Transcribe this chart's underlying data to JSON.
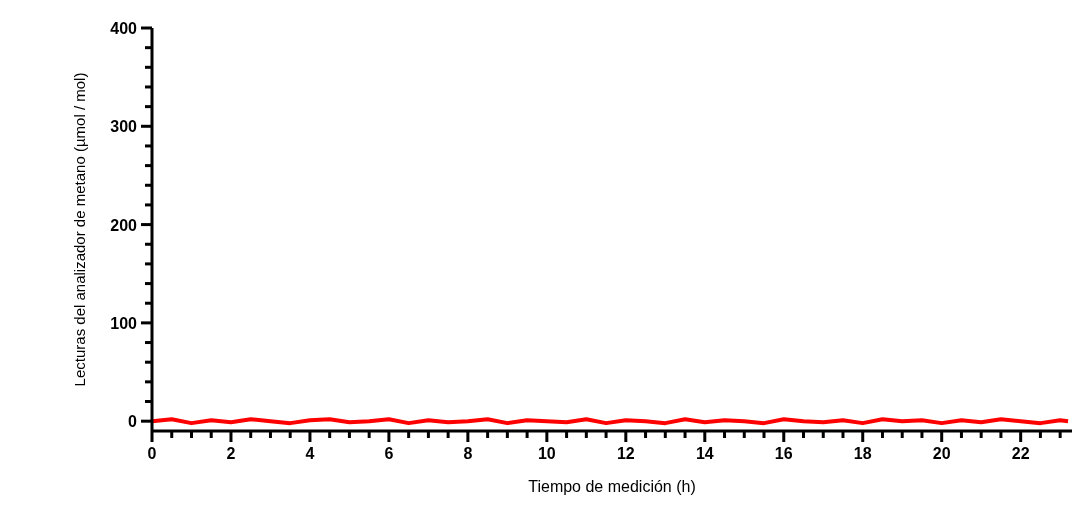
{
  "chart_data": {
    "type": "line",
    "xlabel": "Tiempo de medición (h)",
    "ylabel": "Lecturas del analizador de metano (µmol / mol)",
    "x": [
      0,
      0.5,
      1,
      1.5,
      2,
      2.5,
      3,
      3.5,
      4,
      4.5,
      5,
      5.5,
      6,
      6.5,
      7,
      7.5,
      8,
      8.5,
      9,
      9.5,
      10,
      10.5,
      11,
      11.5,
      12,
      12.5,
      13,
      13.5,
      14,
      14.5,
      15,
      15.5,
      16,
      16.5,
      17,
      17.5,
      18,
      18.5,
      19,
      19.5,
      20,
      20.5,
      21,
      21.5,
      22,
      22.5,
      23,
      23.2
    ],
    "series": [
      {
        "color": "#ff0000",
        "values": [
          0,
          2,
          -2,
          1,
          -1,
          2,
          0,
          -2,
          1,
          2,
          -1,
          0,
          2,
          -2,
          1,
          -1,
          0,
          2,
          -2,
          1,
          0,
          -1,
          2,
          -2,
          1,
          0,
          -2,
          2,
          -1,
          1,
          0,
          -2,
          2,
          0,
          -1,
          1,
          -2,
          2,
          0,
          1,
          -2,
          1,
          -1,
          2,
          0,
          -2,
          1,
          0
        ]
      }
    ],
    "xlim": [
      0,
      23.3
    ],
    "xticks": [
      0,
      {
        "value": 0.5,
        "label": null
      },
      {
        "value": 1,
        "label": null
      },
      {
        "value": 1.5,
        "label": null
      },
      2,
      {
        "value": 2.5,
        "label": null
      },
      {
        "value": 3,
        "label": null
      },
      {
        "value": 3.5,
        "label": null
      },
      4,
      {
        "value": 4.5,
        "label": null
      },
      {
        "value": 5,
        "label": null
      },
      {
        "value": 5.5,
        "label": null
      },
      6,
      {
        "value": 6.5,
        "label": null
      },
      {
        "value": 7,
        "label": null
      },
      {
        "value": 7.5,
        "label": null
      },
      8,
      {
        "value": 8.5,
        "label": null
      },
      {
        "value": 9,
        "label": null
      },
      {
        "value": 9.5,
        "label": null
      },
      10,
      {
        "value": 10.5,
        "label": null
      },
      {
        "value": 11,
        "label": null
      },
      {
        "value": 11.5,
        "label": null
      },
      12,
      {
        "value": 12.5,
        "label": null
      },
      {
        "value": 13,
        "label": null
      },
      {
        "value": 13.5,
        "label": null
      },
      14,
      {
        "value": 14.5,
        "label": null
      },
      {
        "value": 15,
        "label": null
      },
      {
        "value": 15.5,
        "label": null
      },
      16,
      {
        "value": 16.5,
        "label": null
      },
      {
        "value": 17,
        "label": null
      },
      {
        "value": 17.5,
        "label": null
      },
      18,
      {
        "value": 18.5,
        "label": null
      },
      {
        "value": 19,
        "label": null
      },
      {
        "value": 19.5,
        "label": null
      },
      20,
      {
        "value": 20.5,
        "label": null
      },
      {
        "value": 21,
        "label": null
      },
      {
        "value": 21.5,
        "label": null
      },
      22,
      {
        "value": 22.5,
        "label": null
      },
      {
        "value": 23,
        "label": null
      }
    ],
    "ylim": [
      -10,
      400
    ],
    "yticks": [
      0,
      {
        "value": 20,
        "label": null
      },
      {
        "value": 40,
        "label": null
      },
      {
        "value": 60,
        "label": null
      },
      {
        "value": 80,
        "label": null
      },
      100,
      {
        "value": 120,
        "label": null
      },
      {
        "value": 140,
        "label": null
      },
      {
        "value": 160,
        "label": null
      },
      {
        "value": 180,
        "label": null
      },
      200,
      {
        "value": 220,
        "label": null
      },
      {
        "value": 240,
        "label": null
      },
      {
        "value": 260,
        "label": null
      },
      {
        "value": 280,
        "label": null
      },
      300,
      {
        "value": 320,
        "label": null
      },
      {
        "value": 340,
        "label": null
      },
      {
        "value": 360,
        "label": null
      },
      {
        "value": 380,
        "label": null
      },
      400
    ],
    "grid": false,
    "legend": false,
    "marker": "none",
    "line_style": "solid"
  }
}
